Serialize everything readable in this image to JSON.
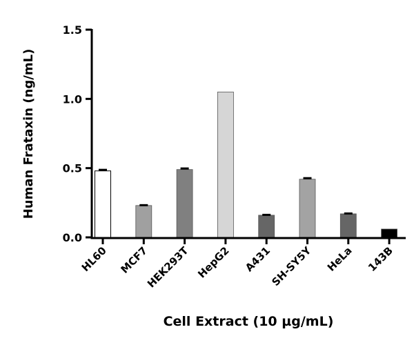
{
  "chart_data": {
    "type": "bar",
    "title": "",
    "xlabel": "Cell Extract (10 µg/mL)",
    "ylabel": "Human Frataxin (ng/mL)",
    "ylim": [
      0,
      1.5
    ],
    "yticks": [
      "0.0",
      "0.5",
      "1.0",
      "1.5"
    ],
    "categories": [
      "HL60",
      "MCF7",
      "HEK293T",
      "HepG2",
      "A431",
      "SH-SY5Y",
      "HeLa",
      "143B"
    ],
    "values": [
      0.48,
      0.23,
      0.49,
      1.05,
      0.16,
      0.42,
      0.17,
      0.06
    ],
    "errors": [
      0.01,
      0.005,
      0.01,
      0,
      0.005,
      0.01,
      0.005,
      0
    ],
    "colors": [
      "#ffffff",
      "#a0a0a0",
      "#808080",
      "#d6d6d6",
      "#666666",
      "#a3a3a3",
      "#666666",
      "#000000"
    ],
    "grid": false,
    "legend": "none"
  }
}
